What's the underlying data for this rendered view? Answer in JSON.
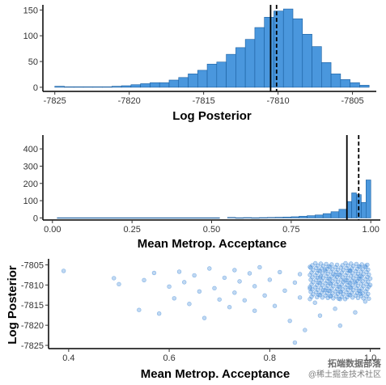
{
  "colors": {
    "fill": "#4a97dd",
    "edge": "#1b5fa0",
    "point": "#4a90d9"
  },
  "watermark": {
    "line1": "拓端数据部落",
    "line2": "@稀土掘金技术社区"
  },
  "chart_data": [
    {
      "type": "bar",
      "xlabel": "Log Posterior",
      "ylabel": "",
      "xlim": [
        -7825.8,
        -7803.4
      ],
      "ylim": [
        -8,
        160
      ],
      "xticks": [
        -7825,
        -7820,
        -7815,
        -7810,
        -7805
      ],
      "xtick_labels": [
        "-7825",
        "-7820",
        "-7815",
        "-7810",
        "-7805"
      ],
      "yticks": [
        0,
        50,
        100,
        150
      ],
      "ytick_labels": [
        "0",
        "50",
        "100",
        "150"
      ],
      "bin_start": -7825,
      "bin_width": 0.64,
      "counts": [
        2,
        1,
        1,
        1,
        1,
        1,
        2,
        3,
        5,
        7,
        9,
        9,
        14,
        19,
        26,
        33,
        45,
        49,
        64,
        77,
        93,
        116,
        136,
        148,
        152,
        133,
        103,
        79,
        48,
        26,
        15,
        9,
        4
      ],
      "vlines": [
        {
          "x": -7810.5,
          "style": "solid"
        },
        {
          "x": -7810.1,
          "style": "dashed"
        }
      ],
      "grid": false
    },
    {
      "type": "bar",
      "xlabel": "Mean Metrop. Acceptance",
      "ylabel": "",
      "xlim": [
        -0.03,
        1.03
      ],
      "ylim": [
        -12,
        480
      ],
      "xticks": [
        0,
        0.25,
        0.5,
        0.75,
        1
      ],
      "xtick_labels": [
        "0.00",
        "0.25",
        "0.50",
        "0.75",
        "1.00"
      ],
      "yticks": [
        0,
        100,
        200,
        300,
        400
      ],
      "ytick_labels": [
        "0",
        "100",
        "200",
        "300",
        "400"
      ],
      "bins": [
        {
          "x0": 0.015,
          "x1": 0.525,
          "count": 1
        },
        {
          "x0": 0.55,
          "x1": 0.575,
          "count": 3
        },
        {
          "x0": 0.575,
          "x1": 0.6,
          "count": 1
        },
        {
          "x0": 0.6,
          "x1": 0.625,
          "count": 2
        },
        {
          "x0": 0.625,
          "x1": 0.65,
          "count": 1
        },
        {
          "x0": 0.65,
          "x1": 0.675,
          "count": 2
        },
        {
          "x0": 0.675,
          "x1": 0.7,
          "count": 3
        },
        {
          "x0": 0.7,
          "x1": 0.725,
          "count": 4
        },
        {
          "x0": 0.725,
          "x1": 0.75,
          "count": 5
        },
        {
          "x0": 0.75,
          "x1": 0.775,
          "count": 7
        },
        {
          "x0": 0.775,
          "x1": 0.8,
          "count": 10
        },
        {
          "x0": 0.8,
          "x1": 0.825,
          "count": 13
        },
        {
          "x0": 0.825,
          "x1": 0.85,
          "count": 17
        },
        {
          "x0": 0.85,
          "x1": 0.875,
          "count": 25
        },
        {
          "x0": 0.875,
          "x1": 0.9,
          "count": 36
        },
        {
          "x0": 0.9,
          "x1": 0.925,
          "count": 50
        },
        {
          "x0": 0.925,
          "x1": 0.94,
          "count": 95
        },
        {
          "x0": 0.94,
          "x1": 0.955,
          "count": 145
        },
        {
          "x0": 0.955,
          "x1": 0.97,
          "count": 135
        },
        {
          "x0": 0.97,
          "x1": 0.985,
          "count": 90
        },
        {
          "x0": 0.985,
          "x1": 1.0,
          "count": 220
        }
      ],
      "vlines": [
        {
          "x": 0.925,
          "style": "solid"
        },
        {
          "x": 0.962,
          "style": "dashed"
        }
      ],
      "grid": false
    },
    {
      "type": "scatter",
      "xlabel": "Mean Metrop. Acceptance",
      "ylabel": "Log Posterior",
      "xlim": [
        0.36,
        1.02
      ],
      "ylim": [
        -7825.8,
        -7803.5
      ],
      "xticks": [
        0.4,
        0.6,
        0.8,
        1.0
      ],
      "xtick_labels": [
        "0.4",
        "0.6",
        "0.8",
        "1.0"
      ],
      "yticks": [
        -7805,
        -7810,
        -7815,
        -7820,
        -7825
      ],
      "ytick_labels": [
        "-7805",
        "-7810",
        "-7815",
        "-7820",
        "-7825"
      ],
      "points": [
        [
          0.39,
          -7806.5
        ],
        [
          0.49,
          -7808.3
        ],
        [
          0.5,
          -7809.8
        ],
        [
          0.54,
          -7816.2
        ],
        [
          0.55,
          -7808.8
        ],
        [
          0.57,
          -7807.0
        ],
        [
          0.58,
          -7817.1
        ],
        [
          0.6,
          -7810.4
        ],
        [
          0.61,
          -7813.3
        ],
        [
          0.62,
          -7806.7
        ],
        [
          0.63,
          -7809.3
        ],
        [
          0.64,
          -7814.7
        ],
        [
          0.65,
          -7807.6
        ],
        [
          0.66,
          -7811.6
        ],
        [
          0.67,
          -7818.2
        ],
        [
          0.68,
          -7805.9
        ],
        [
          0.69,
          -7810.8
        ],
        [
          0.7,
          -7813.6
        ],
        [
          0.71,
          -7808.2
        ],
        [
          0.72,
          -7815.5
        ],
        [
          0.73,
          -7806.3
        ],
        [
          0.73,
          -7811.9
        ],
        [
          0.74,
          -7809.1
        ],
        [
          0.75,
          -7813.8
        ],
        [
          0.76,
          -7807.1
        ],
        [
          0.77,
          -7816.4
        ],
        [
          0.77,
          -7810.3
        ],
        [
          0.78,
          -7805.6
        ],
        [
          0.79,
          -7812.6
        ],
        [
          0.8,
          -7808.7
        ],
        [
          0.81,
          -7815.2
        ],
        [
          0.82,
          -7806.8
        ],
        [
          0.83,
          -7811.4
        ],
        [
          0.84,
          -7818.9
        ],
        [
          0.85,
          -7809.4
        ],
        [
          0.86,
          -7813.1
        ],
        [
          0.86,
          -7807.3
        ],
        [
          0.87,
          -7821.2
        ],
        [
          0.88,
          -7810.9
        ],
        [
          0.88,
          -7805.5
        ],
        [
          0.89,
          -7814.4
        ],
        [
          0.9,
          -7808.1
        ],
        [
          0.9,
          -7817.6
        ],
        [
          0.91,
          -7811.3
        ],
        [
          0.91,
          -7806.2
        ],
        [
          0.92,
          -7812.8
        ],
        [
          0.92,
          -7809.6
        ],
        [
          0.93,
          -7815.9
        ],
        [
          0.93,
          -7807.5
        ],
        [
          0.94,
          -7811.7
        ],
        [
          0.94,
          -7820.1
        ],
        [
          0.95,
          -7808.9
        ],
        [
          0.95,
          -7813.5
        ],
        [
          0.96,
          -7806.4
        ],
        [
          0.96,
          -7810.6
        ],
        [
          0.97,
          -7816.8
        ],
        [
          0.97,
          -7809.2
        ],
        [
          0.98,
          -7812.2
        ],
        [
          0.98,
          -7807.8
        ],
        [
          0.99,
          -7814.1
        ],
        [
          0.99,
          -7805.3
        ],
        [
          1.0,
          -7810.0
        ],
        [
          1.0,
          -7808.4
        ],
        [
          0.85,
          -7824.3
        ]
      ],
      "grid": false
    }
  ]
}
